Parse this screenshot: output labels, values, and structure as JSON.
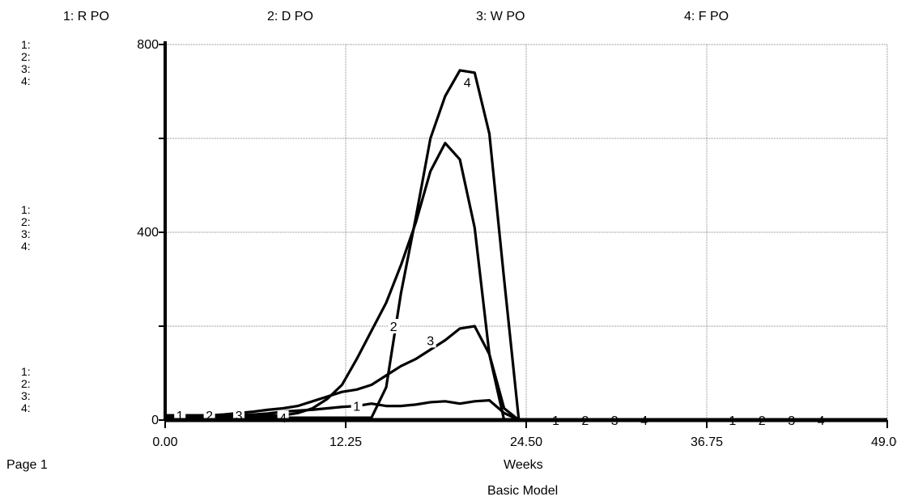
{
  "legend": [
    "1: R PO",
    "2: D PO",
    "3: W PO",
    "4: F PO"
  ],
  "scale_labels": [
    "1:",
    "2:",
    "3:",
    "4:"
  ],
  "page_label": "Page 1",
  "chart_data": {
    "type": "line",
    "title": "",
    "xlabel": "Weeks",
    "caption": "Basic Model",
    "xlim": [
      0,
      49
    ],
    "ylim": [
      0,
      800
    ],
    "x_ticks": [
      "0.00",
      "12.25",
      "24.50",
      "36.75",
      "49.00"
    ],
    "y_ticks": [
      "0",
      "400",
      "800"
    ],
    "grid": true,
    "series": [
      {
        "name": "R PO",
        "label": "1",
        "x": [
          0,
          1,
          2,
          3,
          4,
          5,
          6,
          7,
          8,
          9,
          10,
          11,
          12,
          13,
          14,
          15,
          16,
          17,
          18,
          19,
          20,
          21,
          22,
          23,
          24,
          25,
          26,
          28,
          30,
          32,
          34,
          36,
          38,
          40,
          42,
          44,
          46,
          48,
          49
        ],
        "y": [
          5,
          6,
          7,
          8,
          9,
          10,
          12,
          14,
          18,
          20,
          22,
          25,
          28,
          30,
          35,
          30,
          30,
          33,
          38,
          40,
          35,
          40,
          42,
          15,
          0,
          0,
          0,
          0,
          0,
          0,
          0,
          0,
          0,
          0,
          0,
          0,
          0,
          0,
          0
        ]
      },
      {
        "name": "D PO",
        "label": "2",
        "x": [
          0,
          1,
          2,
          3,
          4,
          5,
          6,
          7,
          8,
          9,
          10,
          11,
          12,
          13,
          14,
          15,
          16,
          17,
          18,
          19,
          20,
          21,
          22,
          23,
          24,
          25,
          26,
          28,
          30,
          32,
          34,
          36,
          38,
          40,
          42,
          44,
          46,
          48,
          49
        ],
        "y": [
          10,
          10,
          10,
          10,
          10,
          10,
          10,
          10,
          10,
          15,
          25,
          45,
          75,
          130,
          190,
          250,
          330,
          420,
          530,
          590,
          555,
          410,
          140,
          0,
          0,
          0,
          0,
          0,
          0,
          0,
          0,
          0,
          0,
          0,
          0,
          0,
          0,
          0,
          0
        ]
      },
      {
        "name": "W PO",
        "label": "3",
        "x": [
          0,
          1,
          2,
          3,
          4,
          5,
          6,
          7,
          8,
          9,
          10,
          11,
          12,
          13,
          14,
          15,
          16,
          17,
          18,
          19,
          20,
          21,
          22,
          23,
          24,
          25,
          26,
          28,
          30,
          32,
          34,
          36,
          38,
          40,
          42,
          44,
          46,
          48,
          49
        ],
        "y": [
          10,
          10,
          10,
          10,
          12,
          15,
          18,
          22,
          25,
          30,
          40,
          50,
          60,
          65,
          75,
          95,
          115,
          130,
          150,
          170,
          195,
          200,
          140,
          25,
          0,
          0,
          0,
          0,
          0,
          0,
          0,
          0,
          0,
          0,
          0,
          0,
          0,
          0,
          0
        ]
      },
      {
        "name": "F PO",
        "label": "4",
        "x": [
          0,
          1,
          2,
          3,
          4,
          5,
          6,
          7,
          8,
          9,
          10,
          11,
          12,
          13,
          14,
          15,
          16,
          17,
          18,
          19,
          20,
          21,
          22,
          23,
          24,
          25,
          26,
          28,
          30,
          32,
          34,
          36,
          38,
          40,
          42,
          44,
          46,
          48,
          49
        ],
        "y": [
          5,
          5,
          5,
          5,
          5,
          5,
          5,
          5,
          5,
          5,
          5,
          5,
          5,
          5,
          5,
          70,
          270,
          430,
          600,
          690,
          745,
          740,
          610,
          300,
          0,
          0,
          0,
          0,
          0,
          0,
          0,
          0,
          0,
          0,
          0,
          0,
          0,
          0,
          0
        ]
      }
    ]
  }
}
